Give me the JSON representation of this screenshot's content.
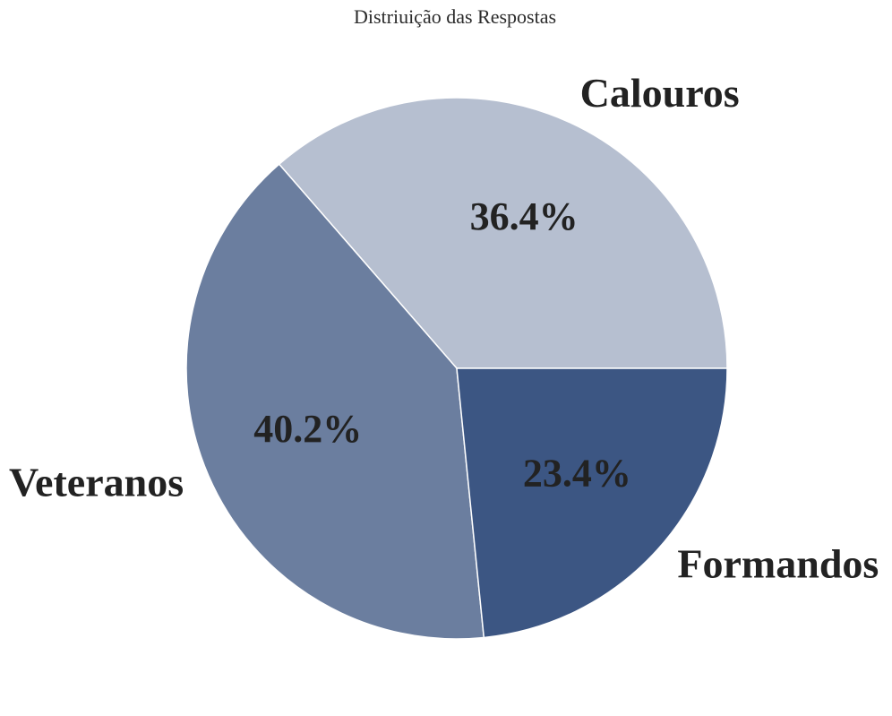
{
  "chart_data": {
    "type": "pie",
    "title": "Distriuição das Respostas",
    "categories": [
      "Calouros",
      "Veteranos",
      "Formandos"
    ],
    "values": [
      36.4,
      40.2,
      23.4
    ],
    "value_labels": [
      "36.4%",
      "40.2%",
      "23.4%"
    ],
    "colors": [
      "#b6bfd0",
      "#6b7e9f",
      "#3c5683"
    ],
    "start_angle_deg": 0,
    "direction": "counterclockwise",
    "legend": "none"
  }
}
